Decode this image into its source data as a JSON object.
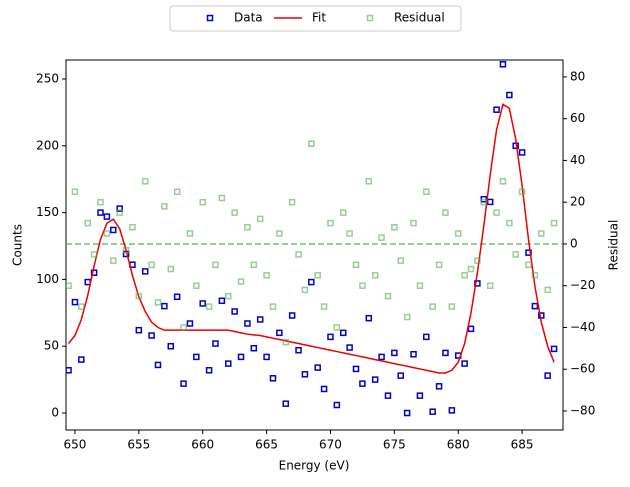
{
  "chart_data": {
    "type": "scatter",
    "xlabel": "Energy (eV)",
    "ylabel": "Counts",
    "y2label": "Residual",
    "x": [
      649.5,
      650,
      650.5,
      651,
      651.5,
      652,
      652.5,
      653,
      653.5,
      654,
      654.5,
      655,
      655.5,
      656,
      656.5,
      657,
      657.5,
      658,
      658.5,
      659,
      659.5,
      660,
      660.5,
      661,
      661.5,
      662,
      662.5,
      663,
      663.5,
      664,
      664.5,
      665,
      665.5,
      666,
      666.5,
      667,
      667.5,
      668,
      668.5,
      669,
      669.5,
      670,
      670.5,
      671,
      671.5,
      672,
      672.5,
      673,
      673.5,
      674,
      674.5,
      675,
      675.5,
      676,
      676.5,
      677,
      677.5,
      678,
      678.5,
      679,
      679.5,
      680,
      680.5,
      681,
      681.5,
      682,
      682.5,
      683,
      683.5,
      684,
      684.5,
      685,
      685.5,
      686,
      686.5,
      687,
      687.5
    ],
    "series": [
      {
        "name": "Data",
        "type": "scatter",
        "color": "#0000cc",
        "values": [
          32,
          83,
          40,
          98,
          105,
          150,
          147,
          137,
          153,
          119,
          111,
          62,
          106,
          58,
          36,
          80,
          50,
          87,
          22,
          67,
          42,
          82,
          32,
          52,
          84,
          37,
          76,
          42,
          67,
          48.5,
          70,
          42,
          26,
          60,
          7,
          73,
          47,
          29,
          98,
          34,
          18,
          57,
          6,
          60,
          49,
          33,
          22,
          71,
          25,
          42,
          13,
          45,
          28,
          0,
          44,
          13,
          57,
          1,
          20,
          45,
          2,
          43,
          37,
          63,
          97,
          160,
          158,
          227,
          261,
          238,
          200,
          195,
          120,
          80,
          73,
          28,
          48
        ]
      },
      {
        "name": "Fit",
        "type": "line",
        "color": "#ee0000",
        "values": [
          52,
          58,
          70,
          88,
          110,
          130,
          142,
          145,
          138,
          122,
          103,
          87,
          76,
          68,
          64,
          62,
          62,
          62,
          62,
          62,
          62,
          62,
          62,
          62,
          62,
          62,
          61,
          60,
          59,
          58.5,
          58,
          57,
          56,
          55,
          54,
          53,
          52,
          51,
          50,
          49,
          48,
          47,
          46,
          45,
          44,
          43,
          42,
          41,
          40,
          39,
          38,
          37,
          36,
          35,
          34,
          33,
          32,
          31,
          30,
          30,
          32,
          38,
          52,
          75,
          105,
          140,
          178,
          212,
          231,
          228,
          205,
          170,
          130,
          95,
          68,
          50,
          38
        ]
      },
      {
        "name": "Residual",
        "type": "scatter",
        "axis": "y2",
        "color": "#55aa55",
        "values": [
          -20,
          25,
          -30,
          10,
          -5,
          20,
          5,
          -8,
          15,
          -3,
          8,
          -25,
          30,
          -10,
          -28,
          18,
          -12,
          25,
          -40,
          5,
          -20,
          20,
          -30,
          -10,
          22,
          -25,
          15,
          -18,
          8,
          -10,
          12,
          -15,
          -30,
          5,
          -47,
          20,
          -5,
          -22,
          48,
          -15,
          -30,
          10,
          -40,
          15,
          5,
          -10,
          -20,
          30,
          -15,
          3,
          -25,
          8,
          -8,
          -35,
          10,
          -20,
          25,
          -30,
          -10,
          15,
          -30,
          5,
          -15,
          -12,
          -8,
          20,
          -20,
          15,
          30,
          10,
          -5,
          25,
          -10,
          -15,
          5,
          -22,
          10
        ]
      }
    ],
    "reference_line": {
      "axis": "y2",
      "value": 0,
      "color": "#55aa55"
    },
    "xlim": [
      649.3,
      688.2
    ],
    "xticks": [
      650,
      655,
      660,
      665,
      670,
      675,
      680,
      685
    ],
    "ylim": [
      -12.7,
      264.2
    ],
    "yticks": [
      0,
      50,
      100,
      150,
      200,
      250
    ],
    "y2lim": [
      -89.1,
      88.1
    ],
    "y2ticks": [
      {
        "value": -80,
        "label": "−80"
      },
      {
        "value": -60,
        "label": "−60"
      },
      {
        "value": -40,
        "label": "−40"
      },
      {
        "value": -20,
        "label": "−20"
      },
      0,
      20,
      40,
      60,
      80
    ],
    "legend": "top"
  }
}
